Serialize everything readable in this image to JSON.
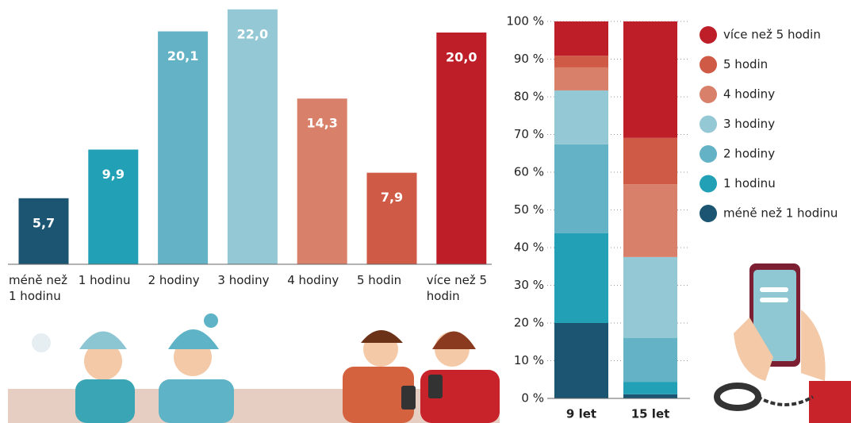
{
  "chart_data": [
    {
      "type": "bar",
      "categories": [
        "méně než 1 hodinu",
        "1 hodinu",
        "2 hodiny",
        "3 hodiny",
        "4 hodiny",
        "5 hodin",
        "více než 5 hodin"
      ],
      "values": [
        5.7,
        9.9,
        20.1,
        22.0,
        14.3,
        7.9,
        20.0
      ],
      "value_labels": [
        "5,7",
        "9,9",
        "20,1",
        "22,0",
        "14,3",
        "7,9",
        "20,0"
      ],
      "colors": [
        "#1b5572",
        "#22a1b6",
        "#64b2c6",
        "#94c8d4",
        "#d8806a",
        "#cf5a45",
        "#be1e28"
      ]
    },
    {
      "type": "stacked_bar",
      "categories": [
        "9 let",
        "15 let"
      ],
      "series": [
        {
          "name": "méně než 1 hodinu",
          "color": "#1b5572",
          "values": [
            20.0,
            1.1
          ]
        },
        {
          "name": "1 hodinu",
          "color": "#22a1b6",
          "values": [
            23.8,
            3.3
          ]
        },
        {
          "name": "2 hodiny",
          "color": "#64b2c6",
          "values": [
            23.6,
            11.6
          ]
        },
        {
          "name": "3 hodiny",
          "color": "#94c8d4",
          "values": [
            14.3,
            21.5
          ]
        },
        {
          "name": "4 hodiny",
          "color": "#d8806a",
          "values": [
            6.1,
            19.3
          ]
        },
        {
          "name": "5 hodin",
          "color": "#cf5a45",
          "values": [
            3.1,
            12.3
          ]
        },
        {
          "name": "více než 5 hodin",
          "color": "#be1e28",
          "values": [
            9.1,
            30.9
          ]
        }
      ],
      "ylim": [
        0,
        100
      ],
      "yticks": [
        {
          "value": 0,
          "label": "0 %"
        },
        {
          "value": 10,
          "label": "10 %"
        },
        {
          "value": 20,
          "label": "20 %"
        },
        {
          "value": 30,
          "label": "30 %"
        },
        {
          "value": 40,
          "label": "40 %"
        },
        {
          "value": 50,
          "label": "50 %"
        },
        {
          "value": 60,
          "label": "60 %"
        },
        {
          "value": 70,
          "label": "70 %"
        },
        {
          "value": 80,
          "label": "80 %"
        },
        {
          "value": 90,
          "label": "90 %"
        },
        {
          "value": 100,
          "label": "100 %"
        }
      ],
      "grid": true,
      "legend": "right"
    }
  ]
}
